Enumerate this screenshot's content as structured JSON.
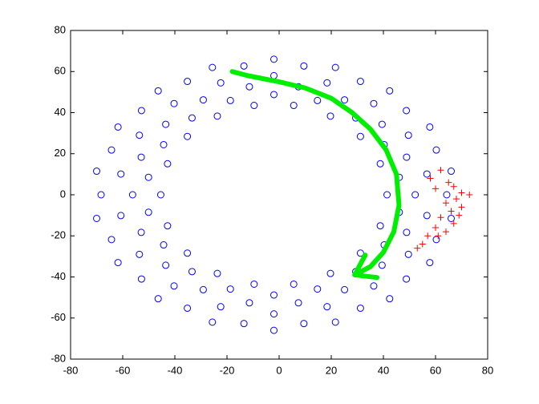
{
  "chart_data": {
    "type": "scatter",
    "xlim": [
      -80,
      80
    ],
    "ylim": [
      -80,
      80
    ],
    "xticks": [
      -80,
      -60,
      -40,
      -20,
      0,
      20,
      40,
      60,
      80
    ],
    "yticks": [
      -80,
      -60,
      -40,
      -20,
      0,
      20,
      40,
      60,
      80
    ],
    "box": true,
    "series": [
      {
        "color": "#0000ff",
        "marker": "o",
        "x": [
          41.4,
          52.2,
          64.3,
          46.1,
          56.7,
          66.0,
          38.8,
          48.9,
          60.3,
          40.3,
          49.6,
          57.8,
          31.2,
          39.5,
          48.8,
          29.4,
          36.3,
          42.4,
          19.7,
          25.1,
          31.2,
          14.7,
          18.4,
          21.6,
          5.6,
          7.4,
          9.5,
          -2,
          -2,
          -2,
          -9.6,
          -11.4,
          -13.5,
          -18.7,
          -22.4,
          -25.6,
          -23.7,
          -29.1,
          -35.2,
          -33.4,
          -40.3,
          -46.4,
          -35.2,
          -43.5,
          -52.8,
          -44.3,
          -53.6,
          -61.8,
          -42.8,
          -52.9,
          -64.3,
          -50.1,
          -60.7,
          -70.0,
          -45.4,
          -56.2,
          -68.3,
          -50.1,
          -60.7,
          -70.0,
          -42.8,
          -52.9,
          -64.3,
          -44.3,
          -53.6,
          -61.8,
          -35.2,
          -43.5,
          -52.8,
          -33.4,
          -40.3,
          -46.4,
          -23.7,
          -29.1,
          -35.2,
          -18.7,
          -22.4,
          -25.6,
          -9.6,
          -11.4,
          -13.5,
          -2,
          -2,
          -2,
          5.6,
          7.4,
          9.5,
          14.7,
          18.4,
          21.6,
          19.7,
          25.1,
          31.2,
          29.4,
          36.3,
          42.4,
          31.2,
          39.5,
          48.8,
          40.3,
          49.6,
          57.8,
          38.8,
          48.9,
          60.3,
          46.1,
          56.7,
          66.0
        ],
        "values": [
          0,
          0,
          0,
          8.5,
          10.1,
          11.5,
          15.1,
          18.3,
          21.8,
          24.4,
          29.0,
          33.0,
          28.4,
          34.3,
          41.0,
          37.4,
          44.4,
          50.6,
          38.3,
          46.2,
          55.2,
          45.9,
          54.5,
          62.0,
          43.5,
          52.6,
          62.7,
          48.8,
          58,
          66,
          43.5,
          52.6,
          62.7,
          45.9,
          54.5,
          62.0,
          38.3,
          46.2,
          55.2,
          37.4,
          44.4,
          50.6,
          28.4,
          34.3,
          41.0,
          24.4,
          29.0,
          33.0,
          15.1,
          18.3,
          21.8,
          8.5,
          10.1,
          11.5,
          0,
          0,
          0,
          -8.5,
          -10.1,
          -11.5,
          -15.1,
          -18.3,
          -21.8,
          -24.4,
          -29.0,
          -33.0,
          -28.4,
          -34.3,
          -41.0,
          -37.4,
          -44.4,
          -50.6,
          -38.3,
          -46.2,
          -55.2,
          -45.9,
          -54.5,
          -62.0,
          -43.5,
          -52.6,
          -62.7,
          -48.8,
          -58,
          -66,
          -43.5,
          -52.6,
          -62.7,
          -45.9,
          -54.5,
          -62.0,
          -38.3,
          -46.2,
          -55.2,
          -37.4,
          -44.4,
          -50.6,
          -28.4,
          -34.3,
          -41.0,
          -24.4,
          -29.0,
          -33.0,
          -15.1,
          -18.3,
          -21.8,
          -8.5,
          -10.1,
          -11.5
        ]
      },
      {
        "color": "#ff0000",
        "marker": "+",
        "x": [
          62,
          58,
          65,
          60,
          67,
          70,
          73,
          68,
          64,
          70,
          66,
          69,
          62,
          67,
          60,
          64,
          57,
          55,
          53,
          61
        ],
        "values": [
          12,
          8,
          6,
          3,
          4,
          1,
          0,
          -2,
          -4,
          -6,
          -8,
          -10,
          -11,
          -14,
          -16,
          -18,
          -20,
          -24,
          -26,
          -20
        ]
      },
      {
        "color": "#00ee00",
        "marker": "arrow",
        "x": [
          -18,
          -12,
          0,
          10,
          20,
          28,
          35,
          41,
          45,
          46,
          44,
          40,
          35,
          29
        ],
        "values": [
          60,
          58,
          55,
          52,
          47,
          40,
          32,
          22,
          10,
          -5,
          -18,
          -28,
          -35,
          -39
        ]
      }
    ]
  }
}
